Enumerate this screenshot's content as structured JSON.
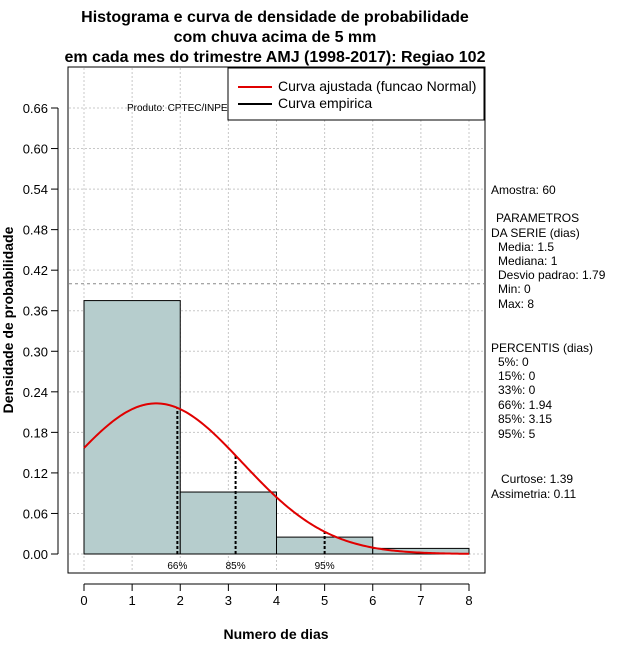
{
  "chart_data": {
    "type": "histogram",
    "title_lines": [
      "Histograma e curva de densidade de probabilidade",
      "com chuva acima de 5 mm",
      "em cada mes do trimestre AMJ (1998-2017): Regiao 102"
    ],
    "xlabel": "Numero de dias",
    "ylabel": "Densidade de probabilidade",
    "xlim": [
      0,
      8
    ],
    "ylim": [
      0,
      0.66
    ],
    "x_ticks": [
      0,
      1,
      2,
      3,
      4,
      5,
      6,
      7,
      8
    ],
    "y_ticks": [
      "0.00",
      "0.06",
      "0.12",
      "0.18",
      "0.24",
      "0.30",
      "0.36",
      "0.42",
      "0.48",
      "0.54",
      "0.60",
      "0.66"
    ],
    "bins": [
      {
        "x0": 0,
        "x1": 2,
        "density": 0.375
      },
      {
        "x0": 2,
        "x1": 4,
        "density": 0.0917
      },
      {
        "x0": 4,
        "x1": 6,
        "density": 0.025
      },
      {
        "x0": 6,
        "x1": 8,
        "density": 0.0083
      }
    ],
    "bar_color": "#b6cdcd",
    "normal_curve": {
      "name": "Curva ajustada (funcao Normal)",
      "mean": 1.5,
      "sd": 1.79,
      "color": "#e00000"
    },
    "empirical_name": "Curva empirica",
    "reference_line_y": 0.4,
    "percentile_lines": [
      {
        "label": "66%",
        "x": 1.94
      },
      {
        "label": "85%",
        "x": 3.15
      },
      {
        "label": "95%",
        "x": 5
      }
    ],
    "product_label": "Produto: CPTEC/INPE"
  },
  "stats": {
    "amostra": "Amostra: 60",
    "params_title_1": "PARAMETROS",
    "params_title_2": "DA SERIE (dias)",
    "media": "Media: 1.5",
    "mediana": "Mediana: 1",
    "desvio": "Desvio padrao: 1.79",
    "min": "Min: 0",
    "max": "Max: 8",
    "percentis_title": "PERCENTIS (dias)",
    "p5": "5%: 0",
    "p15": "15%: 0",
    "p33": "33%: 0",
    "p66": "66%: 1.94",
    "p85": "85%: 3.15",
    "p95": "95%: 5",
    "curtose": "Curtose: 1.39",
    "assimetria": "Assimetria: 0.11"
  }
}
